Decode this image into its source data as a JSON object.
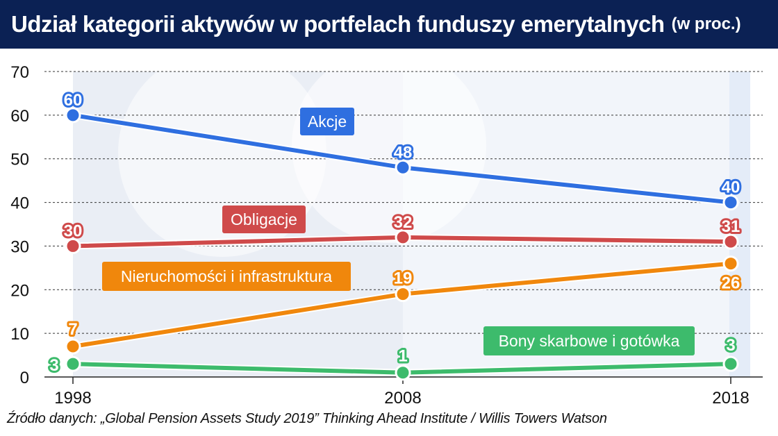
{
  "title": "Udział kategorii aktywów w portfelach funduszy emerytalnych",
  "title_unit": "(w proc.)",
  "source": "Źródło danych: „Global Pension Assets Study 2019” Thinking Ahead Institute / Willis Towers Watson",
  "chart_data": {
    "type": "line",
    "categories": [
      "1998",
      "2008",
      "2018"
    ],
    "ylim": [
      0,
      70
    ],
    "yticks": [
      "0",
      "10",
      "20",
      "30",
      "40",
      "50",
      "60",
      "70"
    ],
    "grid": true,
    "series": [
      {
        "name": "Akcje",
        "values": [
          60,
          48,
          40
        ],
        "color": "#2f6fe0"
      },
      {
        "name": "Obligacje",
        "values": [
          30,
          32,
          31
        ],
        "color": "#cf4a4a"
      },
      {
        "name": "Nieruchomości i infrastruktura",
        "values": [
          7,
          19,
          26
        ],
        "color": "#f0870c"
      },
      {
        "name": "Bony skarbowe i gotówka",
        "values": [
          3,
          1,
          3
        ],
        "color": "#3dbb6c"
      }
    ],
    "value_labels": [
      [
        "60",
        "48",
        "40"
      ],
      [
        "30",
        "32",
        "31"
      ],
      [
        "7",
        "19",
        "26"
      ],
      [
        "3",
        "1",
        "3"
      ]
    ]
  }
}
